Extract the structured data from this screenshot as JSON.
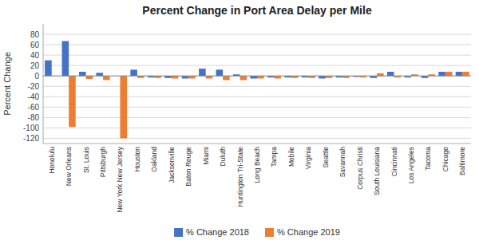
{
  "chart_data": {
    "type": "bar",
    "title": "Percent Change in Port Area Delay per Mile",
    "ylabel": "Percent Change",
    "categories": [
      "Honolulu",
      "New Orleans",
      "St. Louis",
      "Pittsburgh",
      "New York New Jersey",
      "Houston",
      "Oakland",
      "Jacksonville",
      "Baton Rouge",
      "Miami",
      "Duluth",
      "Huntington Tri-State",
      "Long Beach",
      "Tampa",
      "Mobile",
      "Virginia",
      "Seattle",
      "Savannah",
      "Corpus Christi",
      "South Louisiana",
      "Cincinnati",
      "Los Angeles",
      "Tacoma",
      "Chicago",
      "Baltimore"
    ],
    "series": [
      {
        "name": "% Change 2018",
        "color": "#4472C4",
        "values": [
          30,
          67,
          8,
          6,
          null,
          12,
          -3,
          -4,
          -5,
          14,
          12,
          3,
          -5,
          -3,
          -3,
          -3,
          -5,
          -3,
          -2,
          -4,
          8,
          -3,
          -4,
          8,
          8
        ]
      },
      {
        "name": "% Change 2019",
        "color": "#ED7D31",
        "values": [
          null,
          -98,
          -6,
          -8,
          -120,
          -4,
          -4,
          -5,
          -5,
          -5,
          -8,
          -8,
          -5,
          -5,
          -4,
          -4,
          -4,
          -4,
          -3,
          5,
          -3,
          3,
          3,
          8,
          8
        ]
      }
    ],
    "ylim": [
      -130,
      100
    ],
    "yticks": [
      -120,
      -100,
      -80,
      -60,
      -40,
      -20,
      0,
      20,
      40,
      60,
      80
    ],
    "grid": true,
    "legend": "bottom"
  }
}
